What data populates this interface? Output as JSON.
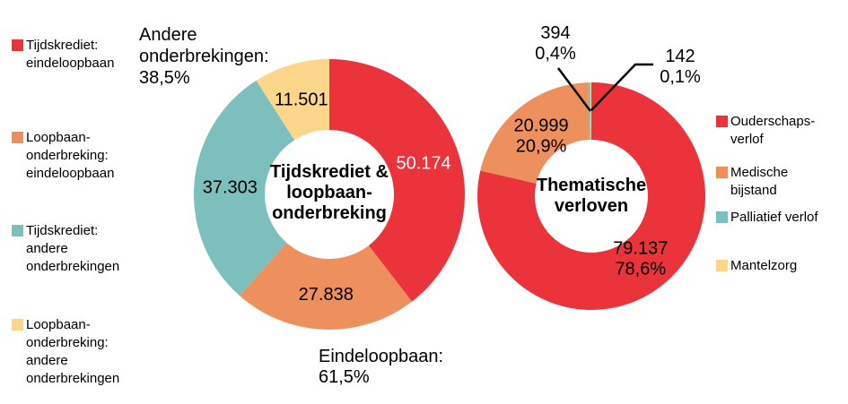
{
  "palette": {
    "red": "#EA333B",
    "orange": "#EE8F5E",
    "teal": "#7CBFBC",
    "yellow": "#FBD68B",
    "text": "#000000",
    "leader_line": "#000000",
    "background": "#FFFFFF"
  },
  "left_legend": {
    "items": [
      {
        "color": "red",
        "lines": [
          "Tijdskrediet:",
          "eindeloopbaan"
        ]
      },
      {
        "color": "orange",
        "lines": [
          "Loopbaan-",
          "onderbreking:",
          "eindeloopbaan"
        ]
      },
      {
        "color": "teal",
        "lines": [
          "Tijdskrediet:",
          "andere",
          "onderbrekingen"
        ]
      },
      {
        "color": "yellow",
        "lines": [
          "Loopbaan-",
          "onderbreking:",
          "andere",
          "onderbrekingen"
        ]
      }
    ]
  },
  "right_legend": {
    "items": [
      {
        "color": "red",
        "lines": [
          "Ouderschaps-",
          "verlof"
        ]
      },
      {
        "color": "orange",
        "lines": [
          "Medische",
          "bijstand"
        ]
      },
      {
        "color": "teal",
        "lines": [
          "Palliatief verlof"
        ]
      },
      {
        "color": "yellow",
        "lines": [
          "Mantelzorg"
        ]
      }
    ]
  },
  "annotations": {
    "andere_lines": [
      "Andere",
      "onderbrekingen:",
      "38,5%"
    ],
    "eindeloopbaan_lines": [
      "Eindeloopbaan:",
      "61,5%"
    ]
  },
  "chart_data": [
    {
      "type": "pie",
      "subtype": "donut",
      "id": "tijdskrediet-loopbaanonderbreking",
      "title": "Tijdskrediet & loopbaan-onderbreking",
      "title_lines": [
        "Tijdskrediet &",
        "loopbaan-",
        "onderbreking"
      ],
      "start_angle_deg": 0,
      "direction": "clockwise",
      "legend_position": "left",
      "slices": [
        {
          "key": "tijdskrediet-eindeloopbaan",
          "label": "Tijdskrediet: eindeloopbaan",
          "value": 50174,
          "display_lines": [
            "50.174"
          ],
          "color": "red",
          "text_color": "#FFFFFF",
          "label_inside": true
        },
        {
          "key": "loopbaanonderbreking-eindeloopbaan",
          "label": "Loopbaan-onderbreking: eindeloopbaan",
          "value": 27838,
          "display_lines": [
            "27.838"
          ],
          "color": "orange",
          "text_color": "#000000",
          "label_inside": true
        },
        {
          "key": "tijdskrediet-andere",
          "label": "Tijdskrediet: andere onderbrekingen",
          "value": 37303,
          "display_lines": [
            "37.303"
          ],
          "color": "teal",
          "text_color": "#000000",
          "label_inside": true
        },
        {
          "key": "loopbaanonderbreking-andere",
          "label": "Loopbaan-onderbreking: andere onderbrekingen",
          "value": 11501,
          "display_lines": [
            "11.501"
          ],
          "color": "yellow",
          "text_color": "#000000",
          "label_inside": true
        }
      ],
      "group_annotations": [
        {
          "text": "Eindeloopbaan: 61,5%",
          "share_pct": 61.5
        },
        {
          "text": "Andere onderbrekingen: 38,5%",
          "share_pct": 38.5
        }
      ]
    },
    {
      "type": "pie",
      "subtype": "donut",
      "id": "thematische-verloven",
      "title": "Thematische verloven",
      "title_lines": [
        "Thematische",
        "verloven"
      ],
      "start_angle_deg": 0,
      "direction": "clockwise",
      "legend_position": "right",
      "slices": [
        {
          "key": "ouderschapsverlof",
          "label": "Ouderschapsverlof",
          "value": 79137,
          "pct": "78,6%",
          "display_lines": [
            "79.137",
            "78,6%"
          ],
          "color": "red",
          "text_color": "#000000",
          "label_inside": true
        },
        {
          "key": "medische-bijstand",
          "label": "Medische bijstand",
          "value": 20999,
          "pct": "20,9%",
          "display_lines": [
            "20.999",
            "20,9%"
          ],
          "color": "orange",
          "text_color": "#000000",
          "label_inside": true
        },
        {
          "key": "palliatief-verlof",
          "label": "Palliatief verlof",
          "value": 394,
          "pct": "0,4%",
          "display_lines": [
            "394",
            "0,4%"
          ],
          "color": "teal",
          "text_color": "#000000",
          "label_inside": false
        },
        {
          "key": "mantelzorg",
          "label": "Mantelzorg",
          "value": 142,
          "pct": "0,1%",
          "display_lines": [
            "142",
            "0,1%"
          ],
          "color": "yellow",
          "text_color": "#000000",
          "label_inside": false
        }
      ]
    }
  ]
}
